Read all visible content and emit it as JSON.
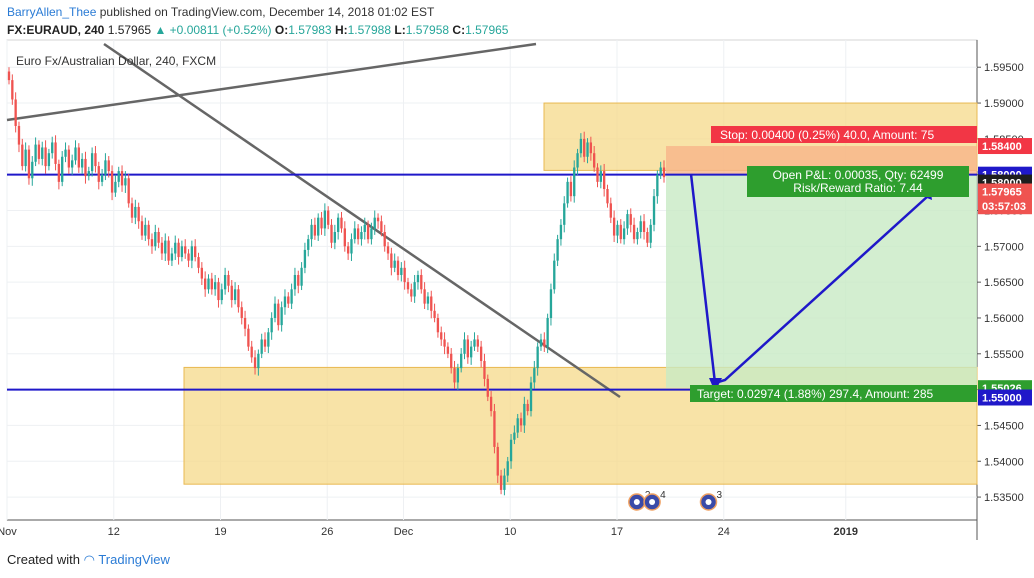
{
  "header": {
    "user": "BarryAllen_Thee",
    "published": "published on TradingView.com, December 14, 2018 01:02 EST",
    "symbol": "FX:EURAUD, 240",
    "last": "1.57965",
    "change": "+0.00811 (+0.52%)",
    "o_label": "O:",
    "o_value": "1.57983",
    "h_label": "H:",
    "h_value": "1.57988",
    "l_label": "L:",
    "l_value": "1.57958",
    "c_label": "C:",
    "c_value": "1.57965"
  },
  "footer": {
    "created_with": "Created with",
    "brand": "TradingView"
  },
  "chart_data": {
    "type": "candlestick",
    "title": "Euro Fx/Australian Dollar, 240, FXCM",
    "ylim": [
      1.5318,
      1.5988
    ],
    "y_ticks": [
      "1.59500",
      "1.59000",
      "1.58500",
      "1.58000",
      "1.57500",
      "1.57000",
      "1.56500",
      "1.56000",
      "1.55500",
      "1.55000",
      "1.54500",
      "1.54000",
      "1.53500"
    ],
    "x_ticks": [
      {
        "label": "Nov",
        "day": 5.0,
        "bold": false
      },
      {
        "label": "12",
        "day": 12,
        "bold": false
      },
      {
        "label": "19",
        "day": 19,
        "bold": false
      },
      {
        "label": "26",
        "day": 26,
        "bold": false
      },
      {
        "label": "Dec",
        "day": 31,
        "bold": false
      },
      {
        "label": "10",
        "day": 38,
        "bold": false
      },
      {
        "label": "17",
        "day": 45,
        "bold": false
      },
      {
        "label": "24",
        "day": 52,
        "bold": false
      },
      {
        "label": "2019",
        "day": 60,
        "bold": true
      }
    ],
    "closes": [
      1.5932,
      1.5905,
      1.5868,
      1.5842,
      1.5812,
      1.5835,
      1.5795,
      1.5818,
      1.5842,
      1.5822,
      1.5838,
      1.5812,
      1.583,
      1.5845,
      1.5815,
      1.579,
      1.5825,
      1.5835,
      1.581,
      1.582,
      1.5838,
      1.581,
      1.5822,
      1.5798,
      1.5805,
      1.583,
      1.5812,
      1.579,
      1.58,
      1.582,
      1.5805,
      1.5775,
      1.579,
      1.5805,
      1.5785,
      1.5795,
      1.576,
      1.574,
      1.5755,
      1.5735,
      1.5715,
      1.573,
      1.571,
      1.57,
      1.572,
      1.5705,
      1.569,
      1.5708,
      1.568,
      1.569,
      1.5705,
      1.5685,
      1.57,
      1.569,
      1.568,
      1.57,
      1.5685,
      1.567,
      1.5655,
      1.564,
      1.5655,
      1.564,
      1.565,
      1.5625,
      1.564,
      1.566,
      1.5645,
      1.5625,
      1.564,
      1.5615,
      1.56,
      1.5585,
      1.556,
      1.5545,
      1.553,
      1.555,
      1.557,
      1.556,
      1.558,
      1.56,
      1.562,
      1.559,
      1.5615,
      1.563,
      1.562,
      1.564,
      1.566,
      1.5645,
      1.567,
      1.5695,
      1.571,
      1.573,
      1.5715,
      1.574,
      1.5725,
      1.575,
      1.573,
      1.5705,
      1.572,
      1.574,
      1.5725,
      1.57,
      1.569,
      1.571,
      1.5725,
      1.571,
      1.572,
      1.573,
      1.571,
      1.5725,
      1.574,
      1.5735,
      1.572,
      1.57,
      1.569,
      1.567,
      1.568,
      1.566,
      1.567,
      1.565,
      1.564,
      1.563,
      1.565,
      1.566,
      1.564,
      1.562,
      1.563,
      1.561,
      1.56,
      1.558,
      1.557,
      1.556,
      1.555,
      1.553,
      1.551,
      1.553,
      1.555,
      1.557,
      1.5545,
      1.556,
      1.557,
      1.556,
      1.554,
      1.5515,
      1.549,
      1.547,
      1.542,
      1.538,
      1.536,
      1.538,
      1.54,
      1.543,
      1.544,
      1.546,
      1.545,
      1.548,
      1.547,
      1.551,
      1.553,
      1.556,
      1.557,
      1.556,
      1.56,
      1.564,
      1.568,
      1.571,
      1.573,
      1.576,
      1.579,
      1.577,
      1.581,
      1.583,
      1.585,
      1.5825,
      1.5845,
      1.583,
      1.581,
      1.579,
      1.5805,
      1.578,
      1.576,
      1.574,
      1.5715,
      1.573,
      1.571,
      1.5725,
      1.5745,
      1.573,
      1.571,
      1.572,
      1.5735,
      1.572,
      1.5705,
      1.573,
      1.577,
      1.58,
      1.581,
      1.57965
    ],
    "annotations": {
      "stop_label": "Stop: 0.00400 (0.25%) 40.0, Amount: 75",
      "pnl_label_1": "Open P&L: 0.00035, Qty: 62499",
      "pnl_label_2": "Risk/Reward Ratio: 7.44",
      "target_label": "Target: 0.02974 (1.88%) 297.4, Amount: 285"
    },
    "price_tags": [
      {
        "label": "1.58400",
        "value": 1.584,
        "color": "#f23645"
      },
      {
        "label": "1.58000",
        "value": 1.58,
        "color": "#1f18c9"
      },
      {
        "label": "1.58000",
        "value": 1.5789,
        "color": "#1e1e1e"
      },
      {
        "label": "1.57965",
        "value": 1.57765,
        "color": "#ef5350"
      },
      {
        "label": "03:57:03",
        "value": 1.5756,
        "color": "#ef5350"
      },
      {
        "label": "1.55026",
        "value": 1.5502,
        "color": "#2e9e2e"
      },
      {
        "label": "1.55000",
        "value": 1.5489,
        "color": "#1f18c9"
      }
    ],
    "event_markers": [
      {
        "count": "2",
        "day": 46.3
      },
      {
        "count": "4",
        "day": 47.3
      },
      {
        "count": "3",
        "day": 51.0
      }
    ],
    "colors": {
      "up": "#26a69a",
      "down": "#ef5350",
      "zone": "#f5d98a",
      "zone_border": "#e8b850",
      "profit": "#c8eac4",
      "loss": "#f7b489",
      "level": "#1f18c9",
      "trendline": "#666666",
      "arrow": "#1f18c9",
      "stop_box": "#f23645",
      "target_box": "#2e9e2e"
    }
  }
}
